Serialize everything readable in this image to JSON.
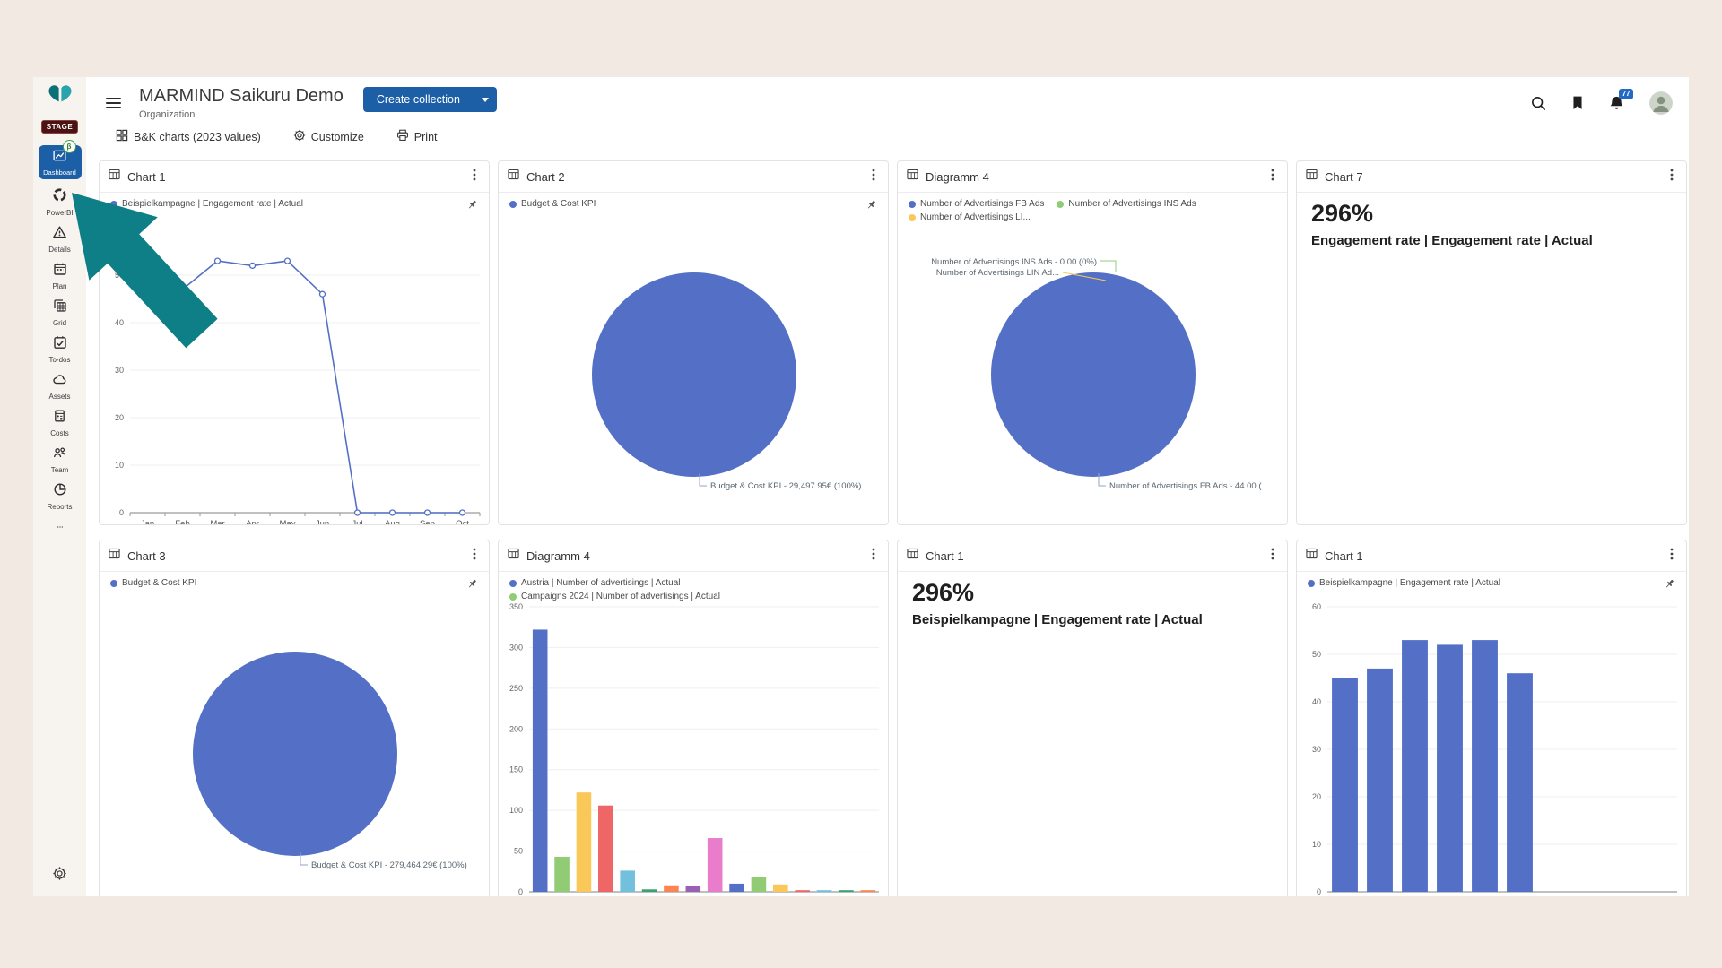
{
  "header": {
    "title": "MARMIND Saikuru Demo",
    "subtitle": "Organization",
    "create_collection": "Create collection",
    "notification_count": "77",
    "stage_badge": "STAGE",
    "beta_badge": "β"
  },
  "sidebar": {
    "items": [
      {
        "label": "Dashboard",
        "icon": "dashboard",
        "active": true
      },
      {
        "label": "PowerBI",
        "icon": "powerbi",
        "active": false
      },
      {
        "label": "Details",
        "icon": "warning",
        "active": false
      },
      {
        "label": "Plan",
        "icon": "calendar",
        "active": false
      },
      {
        "label": "Grid",
        "icon": "grid",
        "active": false
      },
      {
        "label": "To-dos",
        "icon": "todo",
        "active": false
      },
      {
        "label": "Assets",
        "icon": "cloud",
        "active": false
      },
      {
        "label": "Costs",
        "icon": "calculator",
        "active": false
      },
      {
        "label": "Team",
        "icon": "team",
        "active": false
      },
      {
        "label": "Reports",
        "icon": "reports",
        "active": false
      },
      {
        "label": "",
        "icon": "more",
        "active": false
      }
    ]
  },
  "toolbar": {
    "board": "B&K charts (2023 values)",
    "customize": "Customize",
    "print": "Print"
  },
  "colors": {
    "accent_blue": "#1d5fa7",
    "chart_blue": "#5470c6",
    "arrow_teal": "#0e7e87"
  },
  "palette": [
    "#5470c6",
    "#91cc75",
    "#fac858",
    "#ee6666",
    "#73c0de",
    "#3ba272",
    "#fc8452",
    "#9a60b4",
    "#ea7ccc"
  ],
  "cards": [
    {
      "title": "Chart 1",
      "pinned": true,
      "legend": [
        {
          "label": "Beispielkampagne | Engagement rate | Actual",
          "color": "#5470c6"
        }
      ],
      "chart": {
        "type": "line",
        "x": [
          "Jan",
          "Feb",
          "Mar",
          "Apr",
          "May",
          "Jun",
          "Jul",
          "Aug",
          "Sep",
          "Oct"
        ],
        "values": [
          45,
          47,
          53,
          52,
          53,
          46,
          0,
          0,
          0,
          0
        ],
        "ylim": [
          0,
          60
        ],
        "yticks": [
          0,
          10,
          20,
          30,
          40,
          50
        ],
        "color": "#5470c6"
      }
    },
    {
      "title": "Chart 2",
      "pinned": true,
      "legend": [
        {
          "label": "Budget & Cost KPI",
          "color": "#5470c6"
        }
      ],
      "chart": {
        "type": "pie",
        "color": "#5470c6",
        "slices": [
          {
            "label": "Budget & Cost KPI",
            "value": "29,497.95€",
            "pct": "100%"
          }
        ],
        "callout_bottom": "Budget & Cost KPI - 29,497.95€ (100%)"
      }
    },
    {
      "title": "Diagramm 4",
      "pinned": false,
      "legend": [
        {
          "label": "Number of Advertisings FB Ads",
          "color": "#5470c6"
        },
        {
          "label": "Number of Advertisings INS Ads",
          "color": "#91cc75"
        },
        {
          "label": "Number of Advertisings LI...",
          "color": "#fac858"
        }
      ],
      "chart": {
        "type": "pie",
        "color": "#5470c6",
        "callout_top": [
          {
            "text": "Number of Advertisings INS Ads - 0.00 (0%)",
            "color": "#91cc75"
          },
          {
            "text": "Number of Advertisings LIN Ad...",
            "color": "#fac858"
          }
        ],
        "callout_bottom": "Number of Advertisings FB Ads - 44.00 (..."
      }
    },
    {
      "title": "Chart 7",
      "pinned": false,
      "kpi": {
        "value": "296%",
        "label": "Engagement rate | Engagement rate | Actual"
      }
    },
    {
      "title": "Chart 3",
      "pinned": true,
      "legend": [
        {
          "label": "Budget & Cost KPI",
          "color": "#5470c6"
        }
      ],
      "chart": {
        "type": "pie",
        "color": "#5470c6",
        "slices": [
          {
            "label": "Budget & Cost KPI",
            "value": "279,464.29€",
            "pct": "100%"
          }
        ],
        "callout_bottom": "Budget & Cost KPI - 279,464.29€ (100%)"
      }
    },
    {
      "title": "Diagramm 4",
      "pinned": false,
      "legend": [
        {
          "label": "Austria | Number of advertisings | Actual",
          "color": "#5470c6"
        },
        {
          "label": "Campaigns 2024 | Number of advertisings | Actual",
          "color": "#91cc75"
        }
      ],
      "chart": {
        "type": "multibar",
        "values": [
          322,
          43,
          122,
          106,
          26,
          3,
          8,
          7,
          66,
          10,
          18,
          9,
          2,
          2,
          2,
          2
        ],
        "ylim": [
          0,
          350
        ],
        "yticks": [
          0,
          50,
          100,
          150,
          200,
          250,
          300,
          350
        ],
        "use_palette": true
      }
    },
    {
      "title": "Chart 1",
      "pinned": false,
      "kpi": {
        "value": "296%",
        "label": "Beispielkampagne | Engagement rate | Actual"
      }
    },
    {
      "title": "Chart 1",
      "pinned": true,
      "legend": [
        {
          "label": "Beispielkampagne | Engagement rate | Actual",
          "color": "#5470c6"
        }
      ],
      "chart": {
        "type": "bar",
        "values": [
          45,
          47,
          53,
          52,
          53,
          46
        ],
        "slots": 10,
        "ylim": [
          0,
          60
        ],
        "yticks": [
          0,
          10,
          20,
          30,
          40,
          50,
          60
        ],
        "color": "#5470c6"
      }
    }
  ]
}
